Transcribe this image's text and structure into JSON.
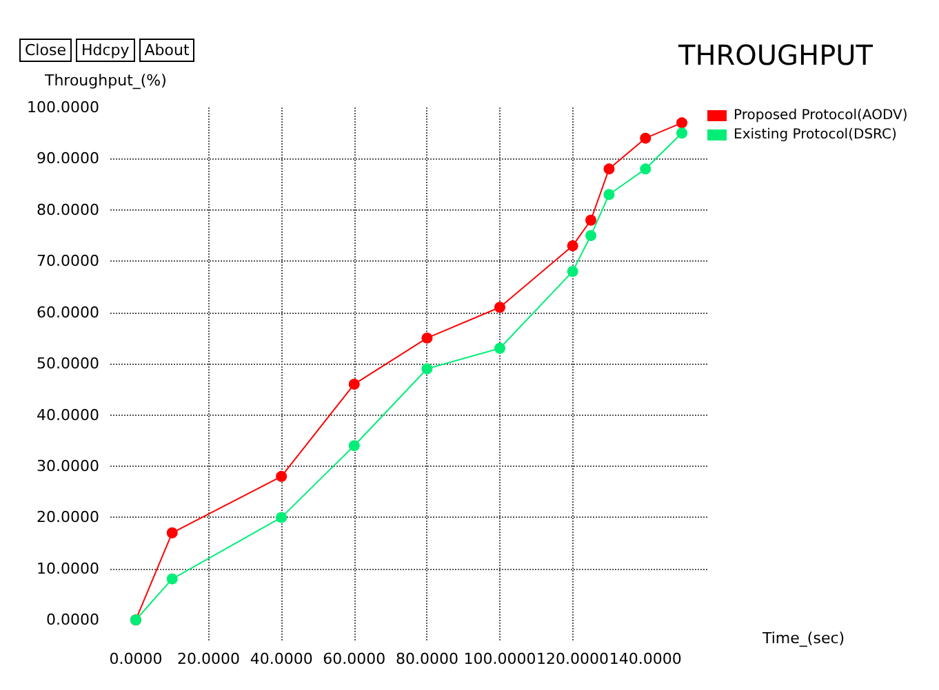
{
  "chart_data": {
    "type": "line",
    "title": "THROUGHPUT",
    "xlabel": "Time_(sec)",
    "ylabel": "Throughput_(%)",
    "annotations": [
      "Close",
      "Hdcpy",
      "About"
    ],
    "x": [
      0,
      10,
      40,
      60,
      80,
      100,
      120,
      125,
      130,
      140,
      150
    ],
    "series": [
      {
        "name": "Proposed Protocol(AODV)",
        "color": "#ff0000",
        "values": [
          0,
          17,
          28,
          46,
          55,
          61,
          73,
          78,
          88,
          94,
          97
        ]
      },
      {
        "name": "Existing Protocol(DSRC)",
        "color": "#00ee77",
        "values": [
          0,
          8,
          20,
          34,
          49,
          53,
          68,
          75,
          83,
          88,
          95
        ]
      }
    ],
    "xlim": [
      -7,
      157
    ],
    "ylim": [
      -4,
      100
    ],
    "xticks": [
      {
        "value": 0,
        "label": "0.0000"
      },
      {
        "value": 20,
        "label": "20.0000"
      },
      {
        "value": 40,
        "label": "40.0000"
      },
      {
        "value": 60,
        "label": "60.0000"
      },
      {
        "value": 80,
        "label": "80.0000"
      },
      {
        "value": 100,
        "label": "100.0000"
      },
      {
        "value": 120,
        "label": "120.0000"
      },
      {
        "value": 140,
        "label": "140.0000"
      }
    ],
    "yticks": [
      {
        "value": 0,
        "label": "0.0000"
      },
      {
        "value": 10,
        "label": "10.0000"
      },
      {
        "value": 20,
        "label": "20.0000"
      },
      {
        "value": 30,
        "label": "30.0000"
      },
      {
        "value": 40,
        "label": "40.0000"
      },
      {
        "value": 50,
        "label": "50.0000"
      },
      {
        "value": 60,
        "label": "60.0000"
      },
      {
        "value": 70,
        "label": "70.0000"
      },
      {
        "value": 80,
        "label": "80.0000"
      },
      {
        "value": 90,
        "label": "90.0000"
      },
      {
        "value": 100,
        "label": "100.0000"
      }
    ],
    "grid": true,
    "legend": "top right",
    "marker": "circle",
    "line_style": "solid"
  }
}
